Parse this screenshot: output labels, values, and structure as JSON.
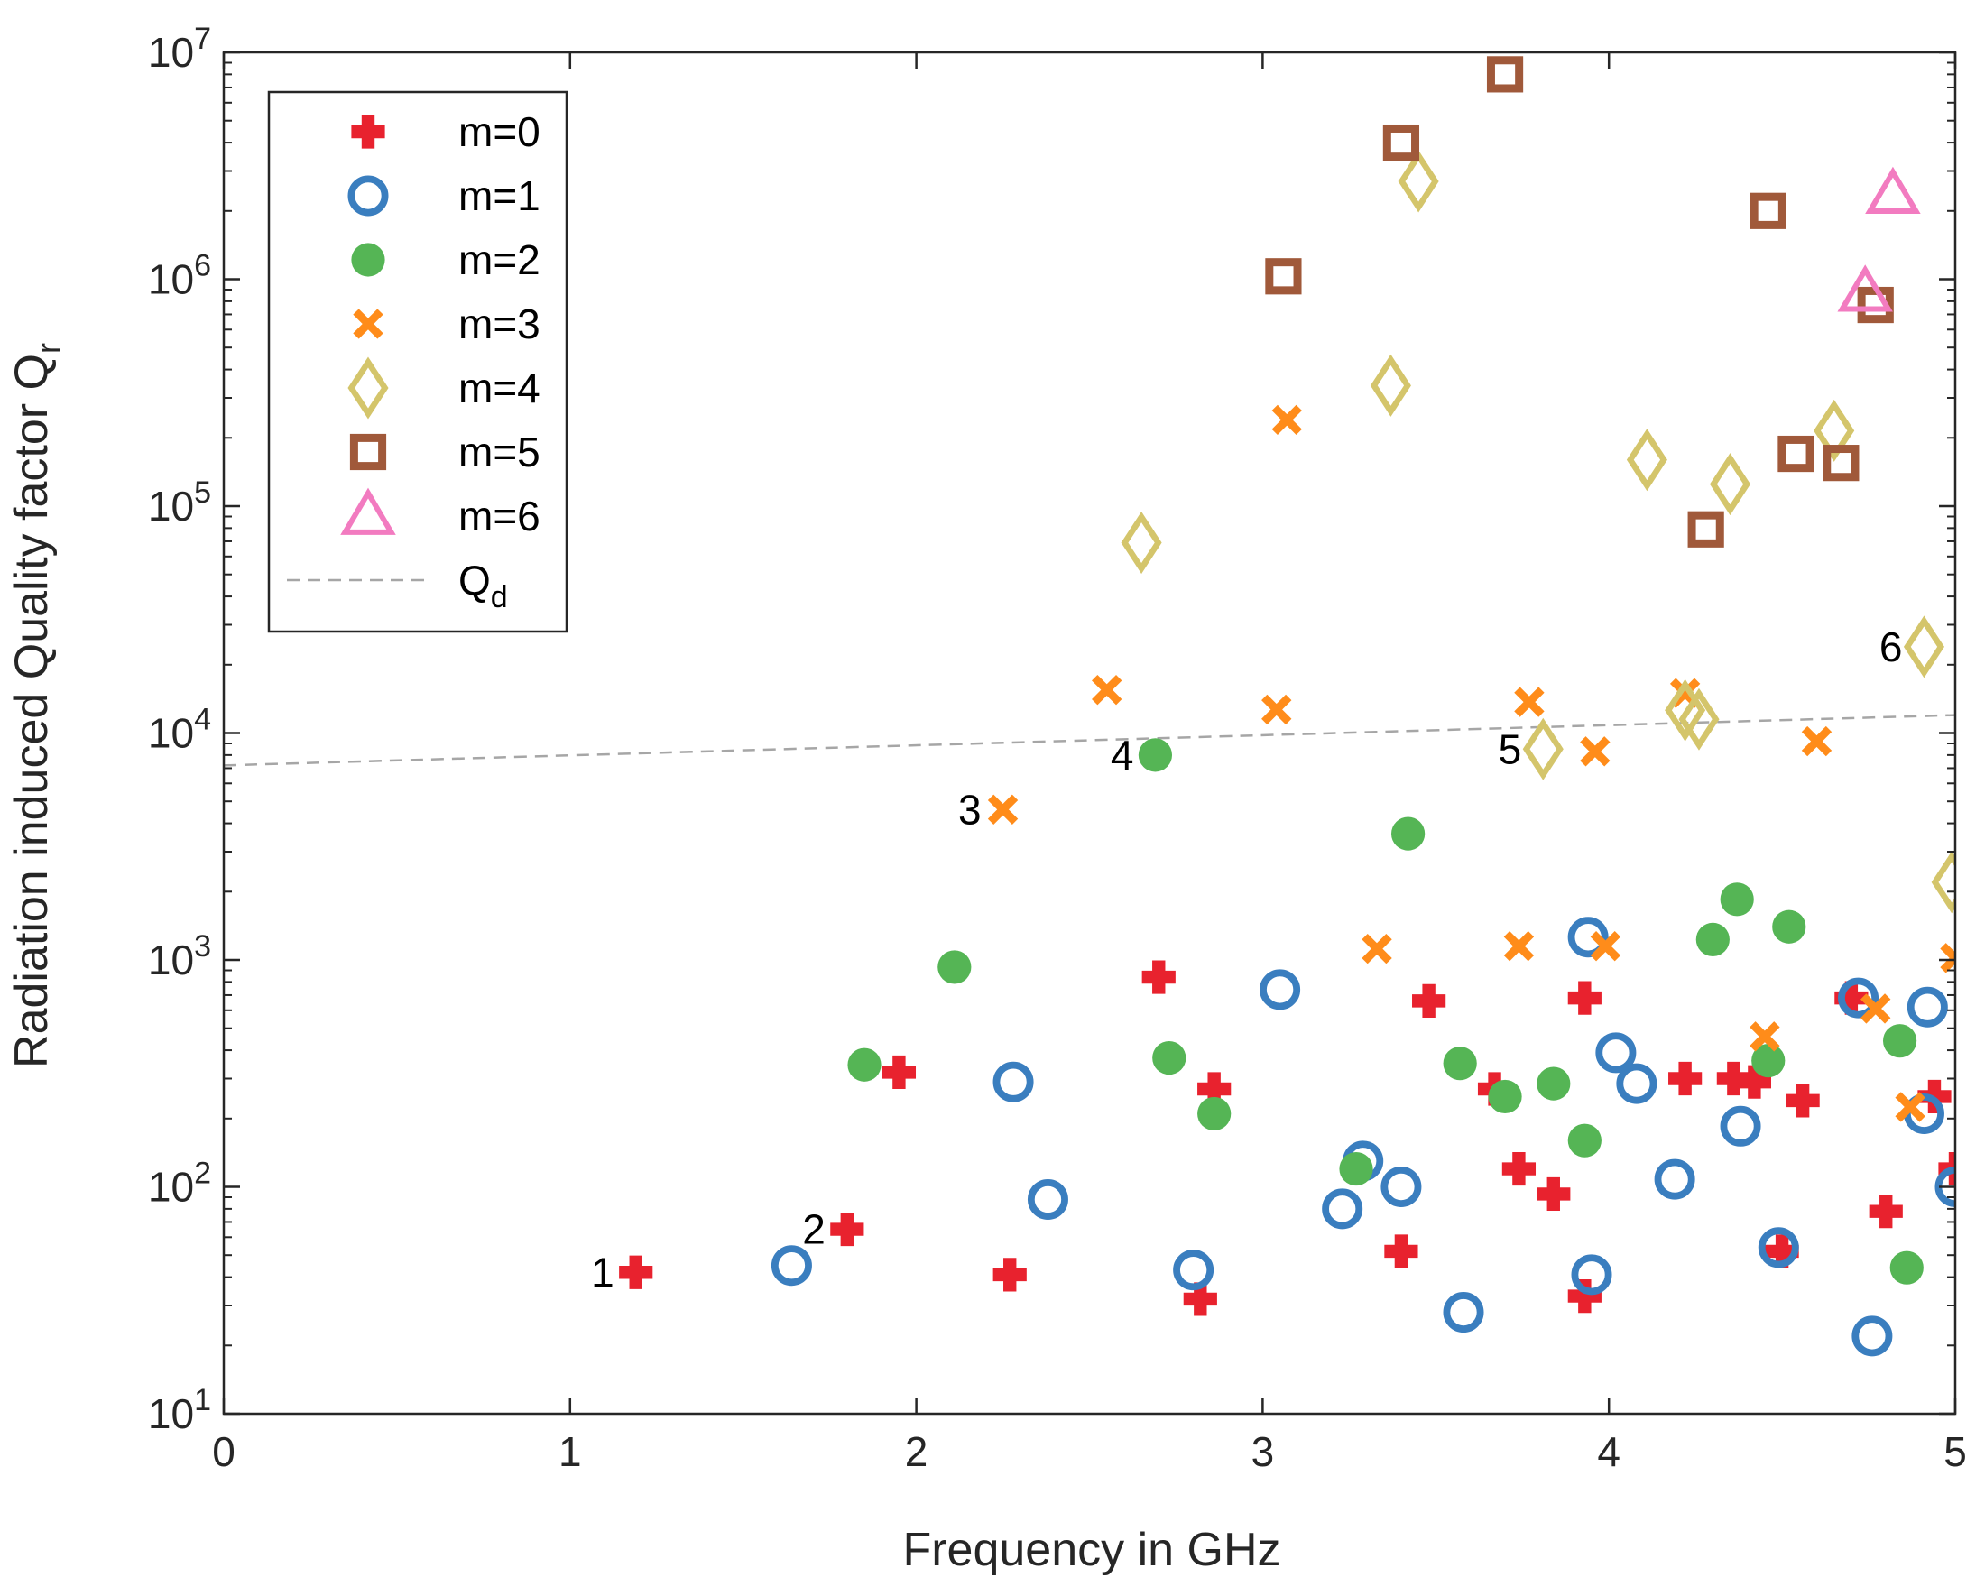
{
  "chart_data": {
    "type": "scatter",
    "title": "",
    "xlabel": "Frequency in GHz",
    "ylabel": "Radiation induced Quality factor Q_r",
    "ylabel_main": "Radiation induced Quality factor Q",
    "ylabel_sub": "r",
    "xlim": [
      0,
      5
    ],
    "ylim": [
      10,
      10000000
    ],
    "yscale": "log",
    "xticks": [
      "0",
      "1",
      "2",
      "3",
      "4",
      "5"
    ],
    "yticks": [
      {
        "base": "10",
        "exp": "1"
      },
      {
        "base": "10",
        "exp": "2"
      },
      {
        "base": "10",
        "exp": "3"
      },
      {
        "base": "10",
        "exp": "4"
      },
      {
        "base": "10",
        "exp": "5"
      },
      {
        "base": "10",
        "exp": "6"
      },
      {
        "base": "10",
        "exp": "7"
      }
    ],
    "legend_position": "top-left",
    "series": [
      {
        "name": "m=0",
        "marker": "plus",
        "color": "#e8222e",
        "points": [
          [
            1.19,
            42
          ],
          [
            1.8,
            65
          ],
          [
            1.95,
            320
          ],
          [
            2.27,
            41
          ],
          [
            2.7,
            840
          ],
          [
            2.82,
            32
          ],
          [
            2.86,
            270
          ],
          [
            3.4,
            52
          ],
          [
            3.48,
            660
          ],
          [
            3.67,
            270
          ],
          [
            3.74,
            120
          ],
          [
            3.84,
            93
          ],
          [
            3.93,
            680
          ],
          [
            3.93,
            33
          ],
          [
            4.22,
            300
          ],
          [
            4.36,
            300
          ],
          [
            4.42,
            290
          ],
          [
            4.5,
            52
          ],
          [
            4.56,
            240
          ],
          [
            4.7,
            680
          ],
          [
            4.8,
            78
          ],
          [
            4.94,
            250
          ],
          [
            5.0,
            120
          ]
        ]
      },
      {
        "name": "m=1",
        "marker": "circle",
        "color": "#3a7ebf",
        "points": [
          [
            1.64,
            45
          ],
          [
            2.28,
            290
          ],
          [
            2.38,
            88
          ],
          [
            2.8,
            43
          ],
          [
            3.05,
            740
          ],
          [
            3.23,
            80
          ],
          [
            3.29,
            130
          ],
          [
            3.4,
            100
          ],
          [
            3.58,
            28
          ],
          [
            3.94,
            1260
          ],
          [
            3.95,
            41
          ],
          [
            4.02,
            390
          ],
          [
            4.08,
            285
          ],
          [
            4.19,
            108
          ],
          [
            4.38,
            185
          ],
          [
            4.49,
            54
          ],
          [
            4.72,
            680
          ],
          [
            4.76,
            22
          ],
          [
            4.91,
            210
          ],
          [
            4.92,
            620
          ],
          [
            5.0,
            100
          ]
        ]
      },
      {
        "name": "m=2",
        "marker": "dot",
        "color": "#55b555",
        "points": [
          [
            1.85,
            345
          ],
          [
            2.11,
            930
          ],
          [
            2.69,
            8000
          ],
          [
            2.73,
            370
          ],
          [
            2.86,
            210
          ],
          [
            3.27,
            120
          ],
          [
            3.42,
            3600
          ],
          [
            3.57,
            350
          ],
          [
            3.7,
            250
          ],
          [
            3.84,
            285
          ],
          [
            3.93,
            160
          ],
          [
            4.3,
            1230
          ],
          [
            4.37,
            1850
          ],
          [
            4.46,
            360
          ],
          [
            4.52,
            1400
          ],
          [
            4.84,
            440
          ],
          [
            4.86,
            44
          ]
        ]
      },
      {
        "name": "m=3",
        "marker": "x",
        "color": "#ff8c1a",
        "points": [
          [
            2.25,
            4600
          ],
          [
            2.55,
            15500
          ],
          [
            3.04,
            12700
          ],
          [
            3.07,
            240000
          ],
          [
            3.33,
            1120
          ],
          [
            3.74,
            1150
          ],
          [
            3.77,
            13700
          ],
          [
            3.96,
            8300
          ],
          [
            3.99,
            1150
          ],
          [
            4.22,
            15000
          ],
          [
            4.45,
            460
          ],
          [
            4.6,
            9200
          ],
          [
            4.77,
            610
          ],
          [
            4.87,
            225
          ],
          [
            5.0,
            1020
          ]
        ]
      },
      {
        "name": "m=4",
        "marker": "diamond",
        "color": "#d4c56b",
        "points": [
          [
            2.65,
            69000
          ],
          [
            3.37,
            340000
          ],
          [
            3.45,
            2700000
          ],
          [
            3.81,
            8500
          ],
          [
            4.11,
            160000
          ],
          [
            4.22,
            12600
          ],
          [
            4.26,
            11500
          ],
          [
            4.35,
            125000
          ],
          [
            4.65,
            215000
          ],
          [
            4.91,
            24000
          ],
          [
            4.99,
            2200
          ]
        ]
      },
      {
        "name": "m=5",
        "marker": "square",
        "color": "#a0593a",
        "points": [
          [
            3.06,
            1030000
          ],
          [
            3.4,
            4000000
          ],
          [
            3.7,
            8000000
          ],
          [
            4.28,
            79000
          ],
          [
            4.46,
            2000000
          ],
          [
            4.54,
            170000
          ],
          [
            4.67,
            155000
          ],
          [
            4.77,
            770000
          ]
        ]
      },
      {
        "name": "m=6",
        "marker": "triangle",
        "color": "#f27bc0",
        "points": [
          [
            4.74,
            870000
          ],
          [
            4.82,
            2350000
          ]
        ]
      }
    ],
    "reference_line": {
      "name": "Q_d",
      "label_main": "Q",
      "label_sub": "d",
      "style": "dashed",
      "color": "#a6a6a6",
      "points": [
        [
          0,
          7200
        ],
        [
          5,
          12000
        ]
      ]
    },
    "annotations": [
      {
        "text": "1",
        "x": 1.19,
        "y": 42
      },
      {
        "text": "2",
        "x": 1.8,
        "y": 65
      },
      {
        "text": "3",
        "x": 2.25,
        "y": 4600
      },
      {
        "text": "4",
        "x": 2.69,
        "y": 8000
      },
      {
        "text": "5",
        "x": 3.81,
        "y": 8500
      },
      {
        "text": "6",
        "x": 4.91,
        "y": 24000
      }
    ]
  }
}
